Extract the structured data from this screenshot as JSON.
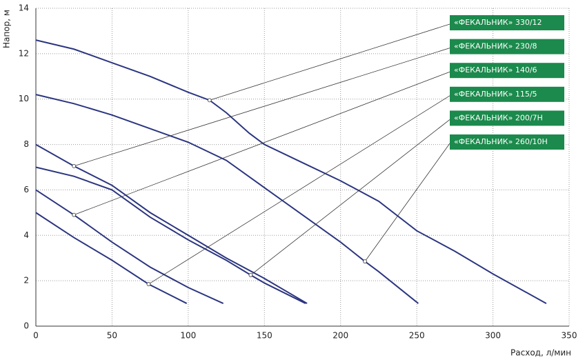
{
  "chart_data": {
    "type": "line",
    "y_label": "Напор, м",
    "x_label": "Расход, л/мин",
    "xlim": [
      0,
      350
    ],
    "xticks": [
      0,
      50,
      100,
      150,
      200,
      250,
      300,
      350
    ],
    "ylim": [
      0,
      14
    ],
    "yticks": [
      0,
      2,
      4,
      6,
      8,
      10,
      12,
      14
    ],
    "grid": true,
    "series": [
      {
        "name": "«ФЕКАЛЬНИК» 330/12",
        "color": "#2b3580",
        "x": [
          0,
          25,
          50,
          75,
          100,
          114,
          125,
          140,
          150,
          175,
          200,
          225,
          250,
          275,
          300,
          335
        ],
        "values": [
          12.6,
          12.2,
          11.6,
          11.0,
          10.3,
          9.95,
          9.4,
          8.5,
          8.0,
          7.2,
          6.4,
          5.5,
          4.2,
          3.3,
          2.3,
          1.0
        ],
        "label_point": {
          "x": 114,
          "y": 9.95
        }
      },
      {
        "name": "«ФЕКАЛЬНИК» 230/8",
        "color": "#2b3580",
        "x": [
          0,
          25,
          50,
          75,
          100,
          125,
          150,
          178
        ],
        "values": [
          8.0,
          7.05,
          6.2,
          5.0,
          4.0,
          3.0,
          2.1,
          1.0
        ],
        "label_point": {
          "x": 25,
          "y": 7.05
        }
      },
      {
        "name": "«ФЕКАЛЬНИК» 140/6",
        "color": "#2b3580",
        "x": [
          0,
          25,
          50,
          75,
          100,
          123
        ],
        "values": [
          6.0,
          4.9,
          3.7,
          2.6,
          1.7,
          1.0
        ],
        "label_point": {
          "x": 25,
          "y": 4.9
        }
      },
      {
        "name": "«ФЕКАЛЬНИК» 115/5",
        "color": "#2b3580",
        "x": [
          0,
          25,
          50,
          74,
          99
        ],
        "values": [
          5.0,
          3.9,
          2.9,
          1.85,
          1.0
        ],
        "label_point": {
          "x": 74,
          "y": 1.85
        }
      },
      {
        "name": "«ФЕКАЛЬНИК» 200/7H",
        "color": "#2b3580",
        "x": [
          0,
          25,
          50,
          75,
          100,
          125,
          141,
          150,
          177
        ],
        "values": [
          7.0,
          6.6,
          6.0,
          4.8,
          3.8,
          2.9,
          2.25,
          1.9,
          1.0
        ],
        "label_point": {
          "x": 141,
          "y": 2.25
        }
      },
      {
        "name": "«ФЕКАЛЬНИК» 260/10H",
        "color": "#2b3580",
        "x": [
          0,
          25,
          50,
          75,
          100,
          125,
          150,
          175,
          200,
          216,
          225,
          251
        ],
        "values": [
          10.2,
          9.8,
          9.3,
          8.7,
          8.1,
          7.3,
          6.1,
          4.9,
          3.7,
          2.85,
          2.4,
          1.0
        ],
        "label_point": {
          "x": 216,
          "y": 2.85
        }
      }
    ],
    "label_color": "#1b8a4c"
  }
}
